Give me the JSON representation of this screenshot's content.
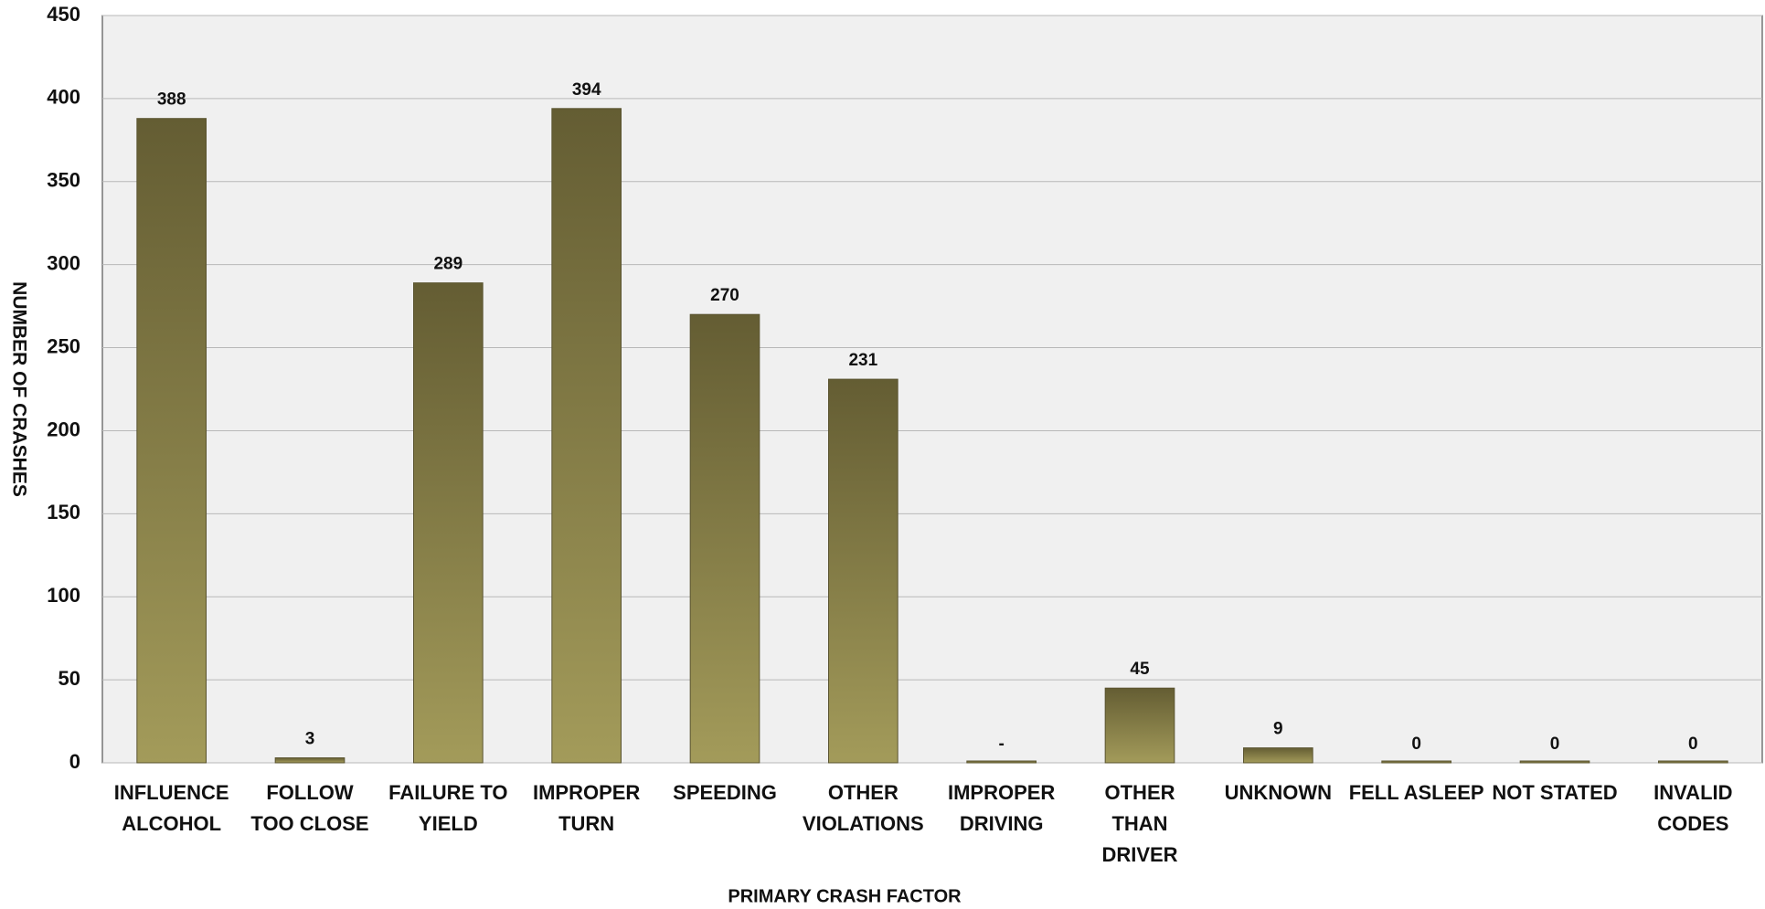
{
  "chart_data": {
    "type": "bar",
    "categories": [
      "INFLUENCE\nALCOHOL",
      "FOLLOW\nTOO CLOSE",
      "FAILURE TO\nYIELD",
      "IMPROPER\nTURN",
      "SPEEDING",
      "OTHER\nVIOLATIONS",
      "IMPROPER\nDRIVING",
      "OTHER\nTHAN\nDRIVER",
      "UNKNOWN",
      "FELL ASLEEP",
      "NOT STATED",
      "INVALID\nCODES"
    ],
    "values": [
      388,
      3,
      289,
      394,
      270,
      231,
      0,
      45,
      9,
      0,
      0,
      0
    ],
    "value_labels": [
      "388",
      "3",
      "289",
      "394",
      "270",
      "231",
      "-",
      "45",
      "9",
      "0",
      "0",
      "0"
    ],
    "color": "#8a8349",
    "x_label": "PRIMARY CRASH FACTOR",
    "y_label": "NUMBER OF CRASHES",
    "ylim": [
      0,
      450
    ],
    "yticks": [
      0,
      50,
      100,
      150,
      200,
      250,
      300,
      350,
      400,
      450
    ],
    "grid": true
  }
}
